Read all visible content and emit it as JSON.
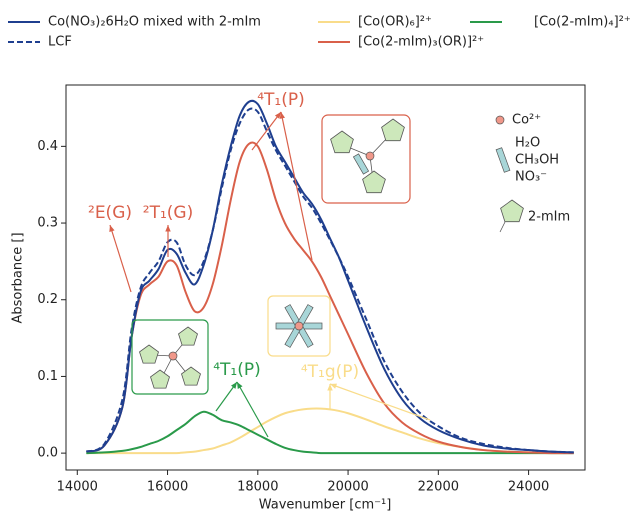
{
  "chart_data": {
    "type": "line",
    "x_label": "Wavenumber [cm⁻¹]",
    "y_label": "Absorbance []",
    "xlim": [
      13750,
      25250
    ],
    "ylim": [
      -0.022,
      0.48
    ],
    "xticks": [
      14000,
      16000,
      18000,
      20000,
      22000,
      24000
    ],
    "yticks": [
      {
        "value": 0,
        "label": "0.0"
      },
      0.1,
      0.2,
      0.3,
      0.4
    ],
    "x": [
      14200,
      14600,
      15000,
      15200,
      15400,
      15600,
      15800,
      16000,
      16200,
      16400,
      16600,
      16800,
      17000,
      17200,
      17400,
      17600,
      17800,
      18000,
      18200,
      18400,
      18600,
      18800,
      19000,
      19200,
      19400,
      19600,
      19800,
      20000,
      20400,
      20800,
      21200,
      21600,
      22000,
      22500,
      23000,
      23500,
      24000,
      24500,
      25000
    ],
    "series": [
      {
        "name": "Co(NO₃)₂6H₂O mixed with 2-mIm",
        "color": "#1f3f8f",
        "dashed": false,
        "values": [
          0.002,
          0.01,
          0.06,
          0.15,
          0.21,
          0.225,
          0.24,
          0.265,
          0.26,
          0.235,
          0.22,
          0.245,
          0.29,
          0.35,
          0.4,
          0.44,
          0.458,
          0.455,
          0.43,
          0.4,
          0.38,
          0.36,
          0.34,
          0.325,
          0.305,
          0.28,
          0.255,
          0.225,
          0.165,
          0.11,
          0.07,
          0.045,
          0.03,
          0.018,
          0.01,
          0.006,
          0.004,
          0.002,
          0.001
        ]
      },
      {
        "name": "LCF",
        "color": "#1f3f8f",
        "dashed": true,
        "values": [
          0.002,
          0.012,
          0.07,
          0.16,
          0.215,
          0.235,
          0.25,
          0.275,
          0.275,
          0.245,
          0.232,
          0.25,
          0.29,
          0.345,
          0.395,
          0.43,
          0.448,
          0.445,
          0.42,
          0.395,
          0.375,
          0.355,
          0.335,
          0.32,
          0.3,
          0.278,
          0.255,
          0.23,
          0.175,
          0.12,
          0.08,
          0.052,
          0.035,
          0.02,
          0.012,
          0.007,
          0.004,
          0.002,
          0.001
        ]
      },
      {
        "name": "[Co(OR)₆]²⁺",
        "color": "#f9dc8a",
        "dashed": false,
        "values": [
          0,
          0,
          0,
          0,
          0,
          0,
          0,
          0,
          0,
          0.001,
          0.002,
          0.004,
          0.006,
          0.01,
          0.014,
          0.02,
          0.027,
          0.034,
          0.041,
          0.047,
          0.052,
          0.055,
          0.057,
          0.058,
          0.058,
          0.057,
          0.055,
          0.052,
          0.044,
          0.035,
          0.027,
          0.019,
          0.013,
          0.008,
          0.004,
          0.002,
          0.001,
          0,
          0
        ]
      },
      {
        "name": "[Co(2-mIm)₃(OR)]²⁺",
        "color": "#d9604a",
        "dashed": false,
        "values": [
          0.002,
          0.01,
          0.06,
          0.15,
          0.205,
          0.22,
          0.23,
          0.25,
          0.245,
          0.21,
          0.185,
          0.19,
          0.22,
          0.27,
          0.33,
          0.38,
          0.403,
          0.4,
          0.37,
          0.33,
          0.3,
          0.28,
          0.265,
          0.25,
          0.23,
          0.205,
          0.18,
          0.155,
          0.105,
          0.065,
          0.04,
          0.025,
          0.015,
          0.008,
          0.004,
          0.002,
          0.001,
          0,
          0
        ]
      },
      {
        "name": "[Co(2-mIm)₄]²⁺",
        "color": "#2a9a4a",
        "dashed": false,
        "values": [
          0,
          0.001,
          0.003,
          0.005,
          0.008,
          0.012,
          0.016,
          0.022,
          0.03,
          0.038,
          0.048,
          0.054,
          0.05,
          0.043,
          0.04,
          0.036,
          0.03,
          0.024,
          0.018,
          0.012,
          0.007,
          0.004,
          0.002,
          0.001,
          0,
          0,
          0,
          0,
          0,
          0,
          0,
          0,
          0,
          0,
          0,
          0,
          0,
          0,
          0
        ]
      }
    ],
    "annotations": [
      {
        "text": "²E(G)",
        "color": "#d9604a"
      },
      {
        "text": "²T₁(G)",
        "color": "#d9604a"
      },
      {
        "text": "⁴T₁(P)",
        "color": "#d9604a"
      },
      {
        "text": "⁴T₁(P)",
        "color": "#2a9a4a"
      },
      {
        "text": "⁴T₁g(P)",
        "color": "#f9dc8a"
      }
    ],
    "inset_legend": [
      "Co²⁺",
      "H₂O",
      "CH₃OH",
      "NO₃⁻",
      "2-mIm"
    ]
  }
}
